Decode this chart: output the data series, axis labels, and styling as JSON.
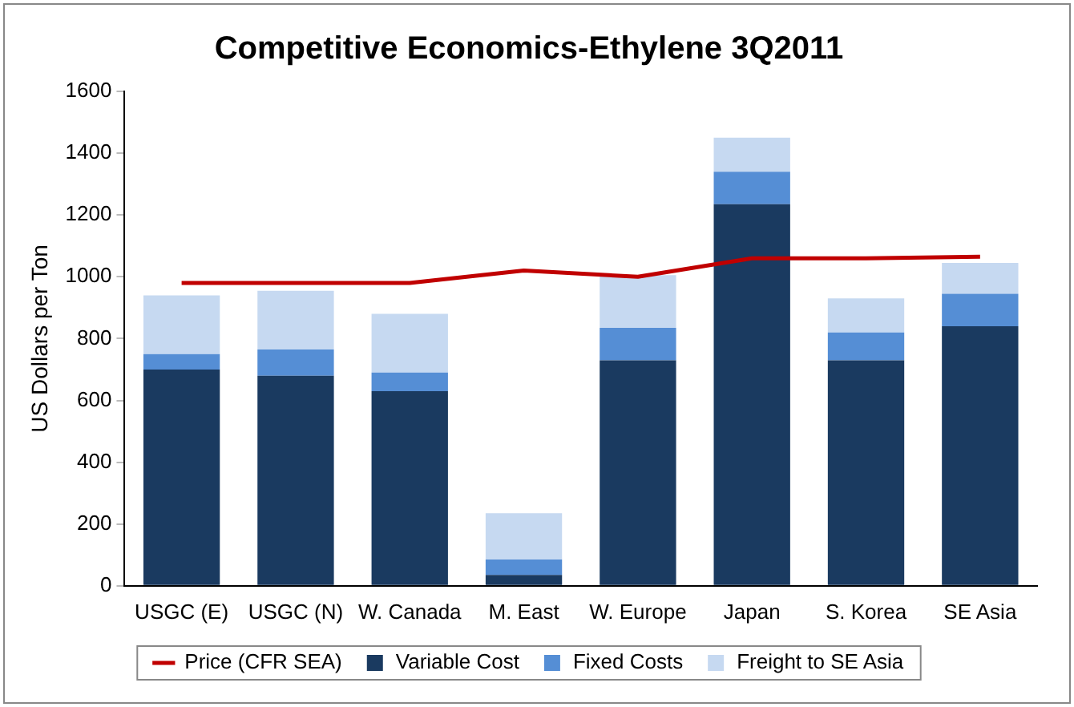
{
  "chart_data": {
    "type": "bar",
    "title": "Competitive Economics-Ethylene 3Q2011",
    "ylabel": "US Dollars per Ton",
    "categories": [
      "USGC (E)",
      "USGC (N)",
      "W. Canada",
      "M. East",
      "W. Europe",
      "Japan",
      "S. Korea",
      "SE Asia"
    ],
    "stacked": true,
    "ylim": [
      0,
      1600
    ],
    "yticks": [
      0,
      200,
      400,
      600,
      800,
      1000,
      1200,
      1400,
      1600
    ],
    "grid": false,
    "legend": "bottom",
    "marker": "none",
    "series": [
      {
        "name": "Variable Cost",
        "color": "#1a3a60",
        "values": [
          700,
          680,
          630,
          35,
          730,
          1235,
          730,
          840
        ]
      },
      {
        "name": "Fixed Costs",
        "color": "#558ed5",
        "values": [
          50,
          85,
          60,
          50,
          105,
          105,
          90,
          105
        ]
      },
      {
        "name": "Freight to SE Asia",
        "color": "#c6d9f1",
        "values": [
          190,
          190,
          190,
          150,
          170,
          110,
          110,
          100
        ]
      },
      {
        "name": "Price (CFR SEA)",
        "type": "line",
        "color": "#c00000",
        "values": [
          980,
          980,
          980,
          1020,
          1000,
          1060,
          1060,
          1065
        ]
      }
    ]
  }
}
